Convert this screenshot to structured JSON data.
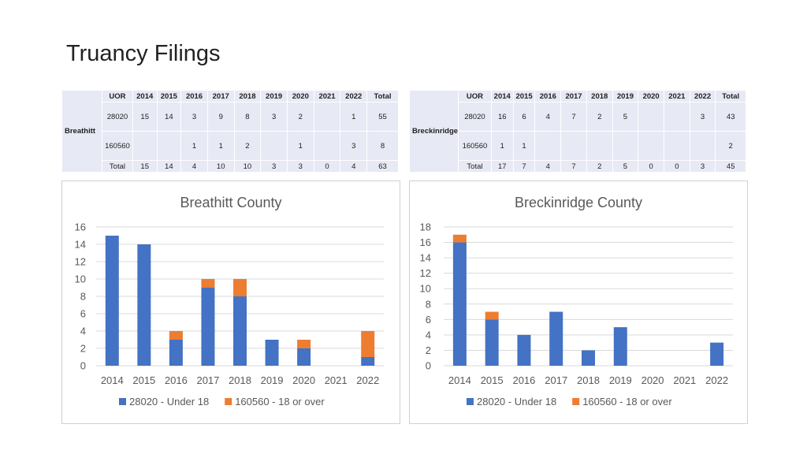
{
  "slide": {
    "title": "Truancy Filings"
  },
  "tables": [
    {
      "county": "Breathitt",
      "header": [
        "UOR",
        "2014",
        "2015",
        "2016",
        "2017",
        "2018",
        "2019",
        "2020",
        "2021",
        "2022",
        "Total"
      ],
      "rows": [
        [
          "28020",
          "15",
          "14",
          "3",
          "9",
          "8",
          "3",
          "2",
          "",
          "1",
          "55"
        ],
        [
          "160560",
          "",
          "",
          "1",
          "1",
          "2",
          "",
          "1",
          "",
          "3",
          "8"
        ]
      ],
      "total": [
        "Total",
        "15",
        "14",
        "4",
        "10",
        "10",
        "3",
        "3",
        "0",
        "4",
        "63"
      ]
    },
    {
      "county": "Breckinridge",
      "header": [
        "UOR",
        "2014",
        "2015",
        "2016",
        "2017",
        "2018",
        "2019",
        "2020",
        "2021",
        "2022",
        "Total"
      ],
      "rows": [
        [
          "28020",
          "16",
          "6",
          "4",
          "7",
          "2",
          "5",
          "",
          "",
          "3",
          "43"
        ],
        [
          "160560",
          "1",
          "1",
          "",
          "",
          "",
          "",
          "",
          "",
          "",
          "2"
        ]
      ],
      "total": [
        "Total",
        "17",
        "7",
        "4",
        "7",
        "2",
        "5",
        "0",
        "0",
        "3",
        "45"
      ]
    }
  ],
  "chart_data": [
    {
      "type": "bar",
      "stacked": true,
      "title": "Breathitt County",
      "categories": [
        "2014",
        "2015",
        "2016",
        "2017",
        "2018",
        "2019",
        "2020",
        "2021",
        "2022"
      ],
      "series": [
        {
          "name": "28020 - Under 18",
          "color": "#4472c4",
          "values": [
            15,
            14,
            3,
            9,
            8,
            3,
            2,
            0,
            1
          ]
        },
        {
          "name": "160560 - 18 or over",
          "color": "#ed7d31",
          "values": [
            0,
            0,
            1,
            1,
            2,
            0,
            1,
            0,
            3
          ]
        }
      ],
      "ylim": [
        0,
        16
      ],
      "yticks": [
        0,
        2,
        4,
        6,
        8,
        10,
        12,
        14,
        16
      ],
      "grid": true,
      "legend": "bottom"
    },
    {
      "type": "bar",
      "stacked": true,
      "title": "Breckinridge County",
      "categories": [
        "2014",
        "2015",
        "2016",
        "2017",
        "2018",
        "2019",
        "2020",
        "2021",
        "2022"
      ],
      "series": [
        {
          "name": "28020 - Under 18",
          "color": "#4472c4",
          "values": [
            16,
            6,
            4,
            7,
            2,
            5,
            0,
            0,
            3
          ]
        },
        {
          "name": "160560 - 18 or over",
          "color": "#ed7d31",
          "values": [
            1,
            1,
            0,
            0,
            0,
            0,
            0,
            0,
            0
          ]
        }
      ],
      "ylim": [
        0,
        18
      ],
      "yticks": [
        0,
        2,
        4,
        6,
        8,
        10,
        12,
        14,
        16,
        18
      ],
      "grid": true,
      "legend": "bottom"
    }
  ]
}
